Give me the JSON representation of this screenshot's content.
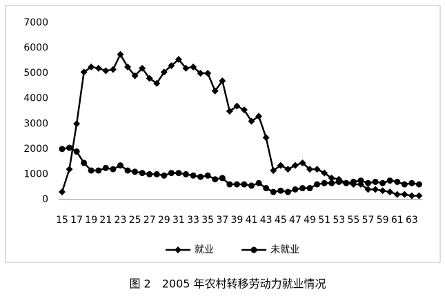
{
  "chart_data": {
    "type": "line",
    "caption": "图 2　2005 年农村转移劳动力就业情况",
    "categories": [
      "15",
      null,
      "17",
      null,
      "19",
      null,
      "21",
      null,
      "23",
      null,
      "25",
      null,
      "27",
      null,
      "29",
      null,
      "31",
      null,
      "33",
      null,
      "35",
      null,
      "37",
      null,
      "39",
      null,
      "41",
      null,
      "43",
      null,
      "45",
      null,
      "47",
      null,
      "49",
      null,
      "51",
      null,
      "53",
      null,
      "55",
      null,
      "57",
      null,
      "59",
      null,
      "61",
      null,
      "63",
      null
    ],
    "series": [
      {
        "name": "就业",
        "color": "#000000",
        "marker": "diamond",
        "values": [
          300,
          1200,
          3000,
          5050,
          5250,
          5200,
          5100,
          5150,
          5750,
          5250,
          4900,
          5200,
          4800,
          4600,
          5050,
          5300,
          5550,
          5200,
          5250,
          5000,
          5000,
          4300,
          4700,
          3500,
          3700,
          3550,
          3100,
          3300,
          2450,
          1150,
          1350,
          1200,
          1350,
          1450,
          1200,
          1200,
          1050,
          850,
          800,
          650,
          600,
          600,
          400,
          400,
          350,
          300,
          200,
          200,
          150,
          150
        ]
      },
      {
        "name": "未就业",
        "color": "#000000",
        "marker": "circle",
        "values": [
          2000,
          2050,
          1900,
          1450,
          1150,
          1150,
          1250,
          1200,
          1350,
          1150,
          1100,
          1050,
          1000,
          1000,
          950,
          1050,
          1050,
          1000,
          950,
          900,
          950,
          800,
          850,
          600,
          600,
          600,
          550,
          650,
          450,
          300,
          350,
          300,
          400,
          450,
          450,
          600,
          650,
          650,
          700,
          650,
          700,
          750,
          650,
          700,
          650,
          750,
          700,
          600,
          650,
          600
        ]
      }
    ],
    "ylim": [
      0,
      7000
    ],
    "yticks": [
      0,
      1000,
      2000,
      3000,
      4000,
      5000,
      6000,
      7000
    ],
    "grid": false,
    "legend": "bottom"
  }
}
